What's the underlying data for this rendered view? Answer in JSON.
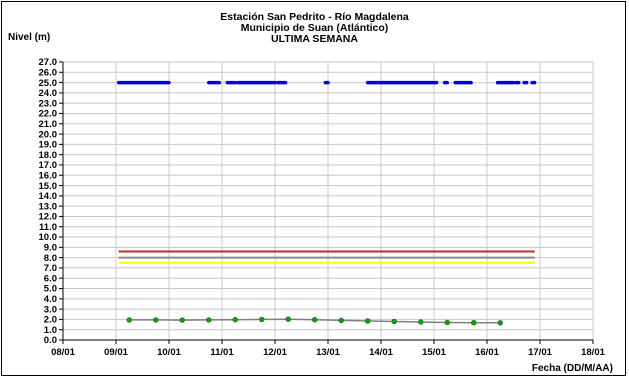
{
  "chart_data": {
    "type": "scatter",
    "title": "Estación San Pedrito - Río Magdalena",
    "subtitle": "Municipio de Suan (Atlántico)",
    "subtitle2": "ULTIMA SEMANA",
    "ylabel": "Nivel (m)",
    "xlabel": "Fecha (DD/M/AA)",
    "ylim": [
      0,
      27
    ],
    "yticks": [
      "0.0",
      "1.0",
      "2.0",
      "3.0",
      "4.0",
      "5.0",
      "6.0",
      "7.0",
      "8.0",
      "9.0",
      "10.0",
      "11.0",
      "12.0",
      "13.0",
      "14.0",
      "15.0",
      "16.0",
      "17.0",
      "18.0",
      "19.0",
      "20.0",
      "21.0",
      "22.0",
      "23.0",
      "24.0",
      "25.0",
      "26.0",
      "27.0"
    ],
    "xlim": [
      0,
      10
    ],
    "xticks": [
      "08/01",
      "09/01",
      "10/01",
      "11/01",
      "12/01",
      "13/01",
      "14/01",
      "15/01",
      "16/01",
      "17/01",
      "18/01"
    ],
    "grid": true,
    "reference_lines": [
      {
        "y": 8.6,
        "x_start": 1.05,
        "x_end": 8.9,
        "color": "#c0282d"
      },
      {
        "y": 8.0,
        "x_start": 1.05,
        "x_end": 8.9,
        "color": "#8a8a8a"
      },
      {
        "y": 7.5,
        "x_start": 1.05,
        "x_end": 8.9,
        "color": "#ffff00"
      }
    ],
    "series": [
      {
        "color": "#0000e0",
        "segments": [
          [
            1.05,
            2.0
          ],
          [
            2.75,
            2.95
          ],
          [
            3.1,
            3.25
          ],
          [
            3.3,
            4.0
          ],
          [
            4.05,
            4.2
          ],
          [
            4.95,
            5.0
          ],
          [
            5.75,
            7.05
          ],
          [
            7.2,
            7.25
          ],
          [
            7.4,
            7.7
          ],
          [
            8.2,
            8.5
          ],
          [
            8.55,
            8.6
          ],
          [
            8.7,
            8.75
          ],
          [
            8.85,
            8.9
          ]
        ],
        "y": 25.0
      },
      {
        "color": "#808080",
        "marker_color": "#1a9a1a",
        "points": [
          [
            1.25,
            1.95
          ],
          [
            1.75,
            1.95
          ],
          [
            2.25,
            1.93
          ],
          [
            2.75,
            1.95
          ],
          [
            3.25,
            1.97
          ],
          [
            3.75,
            2.0
          ],
          [
            4.25,
            2.02
          ],
          [
            4.75,
            1.97
          ],
          [
            5.25,
            1.9
          ],
          [
            5.75,
            1.85
          ],
          [
            6.25,
            1.8
          ],
          [
            6.75,
            1.75
          ],
          [
            7.25,
            1.7
          ],
          [
            7.75,
            1.68
          ],
          [
            8.25,
            1.67
          ]
        ]
      }
    ]
  }
}
